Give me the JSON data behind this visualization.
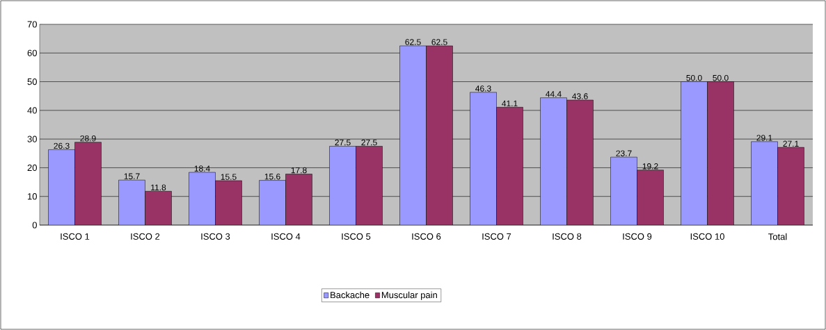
{
  "chart_data": {
    "type": "bar",
    "categories": [
      "ISCO 1",
      "ISCO 2",
      "ISCO 3",
      "ISCO 4",
      "ISCO 5",
      "ISCO 6",
      "ISCO 7",
      "ISCO 8",
      "ISCO 9",
      "ISCO 10",
      "Total"
    ],
    "series": [
      {
        "name": "Backache",
        "color": "#9999ff",
        "values": [
          26.3,
          15.7,
          18.4,
          15.6,
          27.5,
          62.5,
          46.3,
          44.4,
          23.7,
          50.0,
          29.1
        ],
        "value_labels": [
          "26.3",
          "15.7",
          "18.4",
          "15.6",
          "27.5",
          "62.5",
          "46.3",
          "44.4",
          "23.7",
          "50.0",
          "29.1"
        ]
      },
      {
        "name": "Muscular pain",
        "color": "#993366",
        "values": [
          28.9,
          11.8,
          15.5,
          17.8,
          27.5,
          62.5,
          41.1,
          43.6,
          19.2,
          50.0,
          27.1
        ],
        "value_labels": [
          "28.9",
          "11.8",
          "15.5",
          "17.8",
          "27.5",
          "62.5",
          "41.1",
          "43.6",
          "19.2",
          "50.0",
          "27.1"
        ]
      }
    ],
    "ylim": [
      0,
      70
    ],
    "yticks": [
      0,
      10,
      20,
      30,
      40,
      50,
      60,
      70
    ],
    "grid": "y",
    "legend": "bottom"
  }
}
